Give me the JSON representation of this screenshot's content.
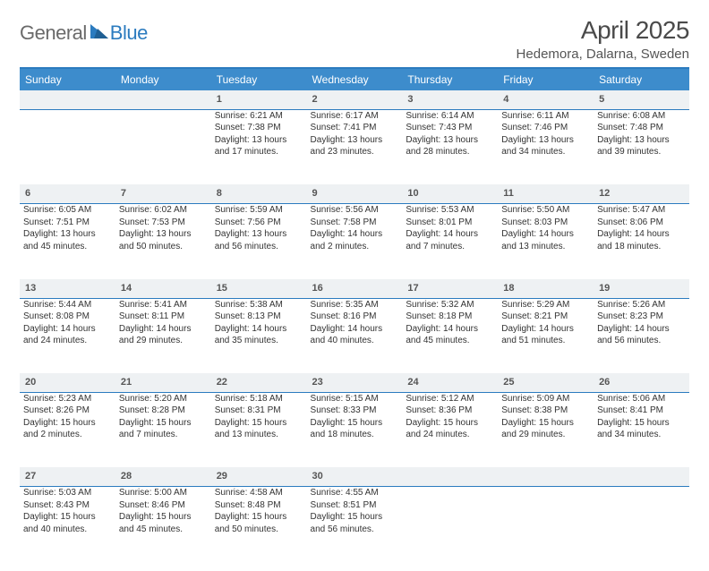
{
  "logo": {
    "word1": "General",
    "word2": "Blue"
  },
  "title": "April 2025",
  "location": "Hedemora, Dalarna, Sweden",
  "colors": {
    "header_bg": "#3d8ccc",
    "accent_border": "#2b7bbf",
    "daynum_bg": "#eef1f3",
    "text": "#333333",
    "logo_gray": "#6a6a6a",
    "logo_blue": "#2b7bbf"
  },
  "weekdays": [
    "Sunday",
    "Monday",
    "Tuesday",
    "Wednesday",
    "Thursday",
    "Friday",
    "Saturday"
  ],
  "weeks": [
    {
      "nums": [
        "",
        "",
        "1",
        "2",
        "3",
        "4",
        "5"
      ],
      "cells": [
        null,
        null,
        {
          "sr": "Sunrise: 6:21 AM",
          "ss": "Sunset: 7:38 PM",
          "dl": "Daylight: 13 hours and 17 minutes."
        },
        {
          "sr": "Sunrise: 6:17 AM",
          "ss": "Sunset: 7:41 PM",
          "dl": "Daylight: 13 hours and 23 minutes."
        },
        {
          "sr": "Sunrise: 6:14 AM",
          "ss": "Sunset: 7:43 PM",
          "dl": "Daylight: 13 hours and 28 minutes."
        },
        {
          "sr": "Sunrise: 6:11 AM",
          "ss": "Sunset: 7:46 PM",
          "dl": "Daylight: 13 hours and 34 minutes."
        },
        {
          "sr": "Sunrise: 6:08 AM",
          "ss": "Sunset: 7:48 PM",
          "dl": "Daylight: 13 hours and 39 minutes."
        }
      ]
    },
    {
      "nums": [
        "6",
        "7",
        "8",
        "9",
        "10",
        "11",
        "12"
      ],
      "cells": [
        {
          "sr": "Sunrise: 6:05 AM",
          "ss": "Sunset: 7:51 PM",
          "dl": "Daylight: 13 hours and 45 minutes."
        },
        {
          "sr": "Sunrise: 6:02 AM",
          "ss": "Sunset: 7:53 PM",
          "dl": "Daylight: 13 hours and 50 minutes."
        },
        {
          "sr": "Sunrise: 5:59 AM",
          "ss": "Sunset: 7:56 PM",
          "dl": "Daylight: 13 hours and 56 minutes."
        },
        {
          "sr": "Sunrise: 5:56 AM",
          "ss": "Sunset: 7:58 PM",
          "dl": "Daylight: 14 hours and 2 minutes."
        },
        {
          "sr": "Sunrise: 5:53 AM",
          "ss": "Sunset: 8:01 PM",
          "dl": "Daylight: 14 hours and 7 minutes."
        },
        {
          "sr": "Sunrise: 5:50 AM",
          "ss": "Sunset: 8:03 PM",
          "dl": "Daylight: 14 hours and 13 minutes."
        },
        {
          "sr": "Sunrise: 5:47 AM",
          "ss": "Sunset: 8:06 PM",
          "dl": "Daylight: 14 hours and 18 minutes."
        }
      ]
    },
    {
      "nums": [
        "13",
        "14",
        "15",
        "16",
        "17",
        "18",
        "19"
      ],
      "cells": [
        {
          "sr": "Sunrise: 5:44 AM",
          "ss": "Sunset: 8:08 PM",
          "dl": "Daylight: 14 hours and 24 minutes."
        },
        {
          "sr": "Sunrise: 5:41 AM",
          "ss": "Sunset: 8:11 PM",
          "dl": "Daylight: 14 hours and 29 minutes."
        },
        {
          "sr": "Sunrise: 5:38 AM",
          "ss": "Sunset: 8:13 PM",
          "dl": "Daylight: 14 hours and 35 minutes."
        },
        {
          "sr": "Sunrise: 5:35 AM",
          "ss": "Sunset: 8:16 PM",
          "dl": "Daylight: 14 hours and 40 minutes."
        },
        {
          "sr": "Sunrise: 5:32 AM",
          "ss": "Sunset: 8:18 PM",
          "dl": "Daylight: 14 hours and 45 minutes."
        },
        {
          "sr": "Sunrise: 5:29 AM",
          "ss": "Sunset: 8:21 PM",
          "dl": "Daylight: 14 hours and 51 minutes."
        },
        {
          "sr": "Sunrise: 5:26 AM",
          "ss": "Sunset: 8:23 PM",
          "dl": "Daylight: 14 hours and 56 minutes."
        }
      ]
    },
    {
      "nums": [
        "20",
        "21",
        "22",
        "23",
        "24",
        "25",
        "26"
      ],
      "cells": [
        {
          "sr": "Sunrise: 5:23 AM",
          "ss": "Sunset: 8:26 PM",
          "dl": "Daylight: 15 hours and 2 minutes."
        },
        {
          "sr": "Sunrise: 5:20 AM",
          "ss": "Sunset: 8:28 PM",
          "dl": "Daylight: 15 hours and 7 minutes."
        },
        {
          "sr": "Sunrise: 5:18 AM",
          "ss": "Sunset: 8:31 PM",
          "dl": "Daylight: 15 hours and 13 minutes."
        },
        {
          "sr": "Sunrise: 5:15 AM",
          "ss": "Sunset: 8:33 PM",
          "dl": "Daylight: 15 hours and 18 minutes."
        },
        {
          "sr": "Sunrise: 5:12 AM",
          "ss": "Sunset: 8:36 PM",
          "dl": "Daylight: 15 hours and 24 minutes."
        },
        {
          "sr": "Sunrise: 5:09 AM",
          "ss": "Sunset: 8:38 PM",
          "dl": "Daylight: 15 hours and 29 minutes."
        },
        {
          "sr": "Sunrise: 5:06 AM",
          "ss": "Sunset: 8:41 PM",
          "dl": "Daylight: 15 hours and 34 minutes."
        }
      ]
    },
    {
      "nums": [
        "27",
        "28",
        "29",
        "30",
        "",
        "",
        ""
      ],
      "cells": [
        {
          "sr": "Sunrise: 5:03 AM",
          "ss": "Sunset: 8:43 PM",
          "dl": "Daylight: 15 hours and 40 minutes."
        },
        {
          "sr": "Sunrise: 5:00 AM",
          "ss": "Sunset: 8:46 PM",
          "dl": "Daylight: 15 hours and 45 minutes."
        },
        {
          "sr": "Sunrise: 4:58 AM",
          "ss": "Sunset: 8:48 PM",
          "dl": "Daylight: 15 hours and 50 minutes."
        },
        {
          "sr": "Sunrise: 4:55 AM",
          "ss": "Sunset: 8:51 PM",
          "dl": "Daylight: 15 hours and 56 minutes."
        },
        null,
        null,
        null
      ]
    }
  ]
}
